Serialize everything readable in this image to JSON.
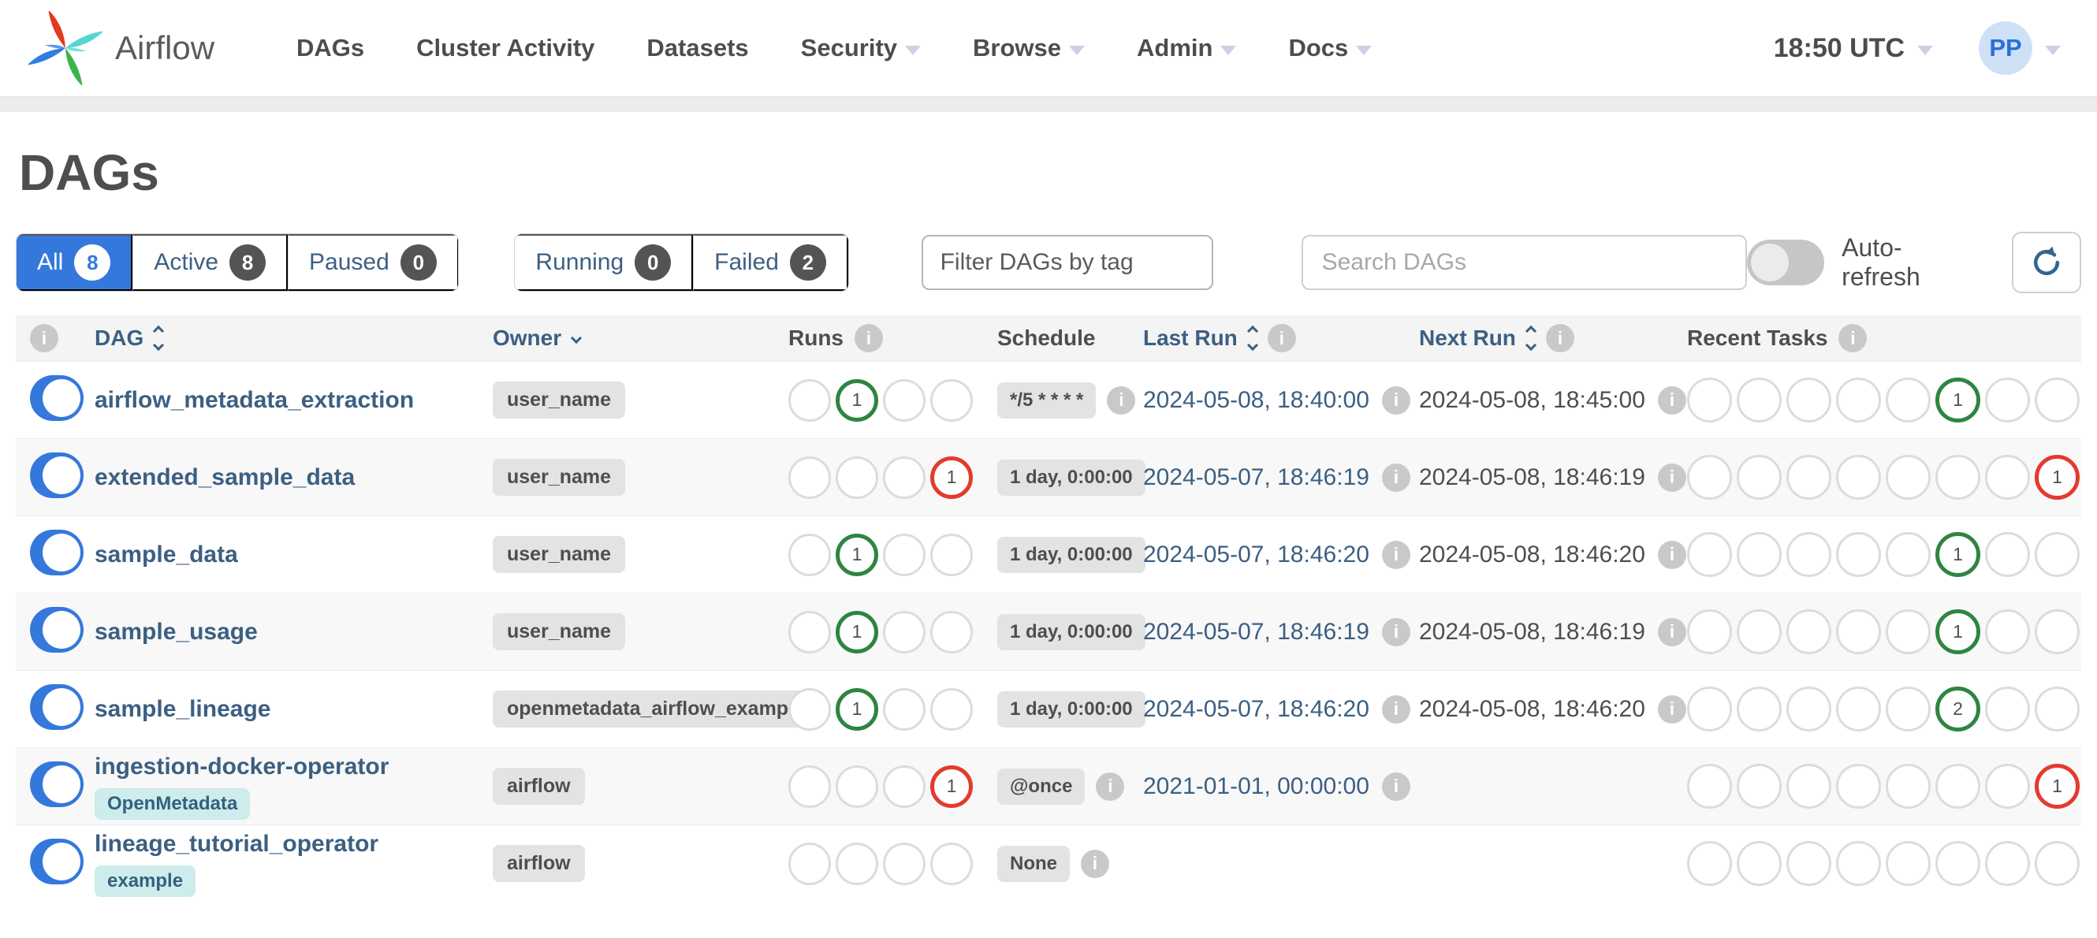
{
  "nav": {
    "brand": "Airflow",
    "items": [
      {
        "label": "DAGs",
        "caret": false
      },
      {
        "label": "Cluster Activity",
        "caret": false
      },
      {
        "label": "Datasets",
        "caret": false
      },
      {
        "label": "Security",
        "caret": true
      },
      {
        "label": "Browse",
        "caret": true
      },
      {
        "label": "Admin",
        "caret": true
      },
      {
        "label": "Docs",
        "caret": true
      }
    ],
    "clock": "18:50 UTC",
    "avatar_initials": "PP"
  },
  "page": {
    "title": "DAGs"
  },
  "filters": {
    "state_buttons": [
      {
        "label": "All",
        "count": "8",
        "active": true
      },
      {
        "label": "Active",
        "count": "8",
        "active": false
      },
      {
        "label": "Paused",
        "count": "0",
        "active": false
      }
    ],
    "run_buttons": [
      {
        "label": "Running",
        "count": "0",
        "active": false
      },
      {
        "label": "Failed",
        "count": "2",
        "active": false
      }
    ],
    "tag_filter_placeholder": "Filter DAGs by tag",
    "search_placeholder": "Search DAGs",
    "auto_refresh_label": "Auto-refresh"
  },
  "icons": {
    "info_glyph": "i"
  },
  "table": {
    "headers": {
      "dag": "DAG",
      "owner": "Owner",
      "runs": "Runs",
      "schedule": "Schedule",
      "last_run": "Last Run",
      "next_run": "Next Run",
      "recent_tasks": "Recent Tasks"
    },
    "rows": [
      {
        "name": "airflow_metadata_extraction",
        "tags": [],
        "owner": "user_name",
        "runs": [
          null,
          {
            "state": "success",
            "count": "1"
          },
          null,
          null
        ],
        "schedule": "*/5 * * * *",
        "schedule_info": true,
        "last_run": "2024-05-08, 18:40:00",
        "next_run": "2024-05-08, 18:45:00",
        "recent": [
          null,
          null,
          null,
          null,
          null,
          {
            "state": "success",
            "count": "1"
          },
          null,
          null,
          null
        ]
      },
      {
        "name": "extended_sample_data",
        "tags": [],
        "owner": "user_name",
        "runs": [
          null,
          null,
          null,
          {
            "state": "failed",
            "count": "1"
          }
        ],
        "schedule": "1 day, 0:00:00",
        "schedule_info": false,
        "last_run": "2024-05-07, 18:46:19",
        "next_run": "2024-05-08, 18:46:19",
        "recent": [
          null,
          null,
          null,
          null,
          null,
          null,
          null,
          {
            "state": "failed",
            "count": "1"
          },
          null
        ]
      },
      {
        "name": "sample_data",
        "tags": [],
        "owner": "user_name",
        "runs": [
          null,
          {
            "state": "success",
            "count": "1"
          },
          null,
          null
        ],
        "schedule": "1 day, 0:00:00",
        "schedule_info": false,
        "last_run": "2024-05-07, 18:46:20",
        "next_run": "2024-05-08, 18:46:20",
        "recent": [
          null,
          null,
          null,
          null,
          null,
          {
            "state": "success",
            "count": "1"
          },
          null,
          null,
          null
        ]
      },
      {
        "name": "sample_usage",
        "tags": [],
        "owner": "user_name",
        "runs": [
          null,
          {
            "state": "success",
            "count": "1"
          },
          null,
          null
        ],
        "schedule": "1 day, 0:00:00",
        "schedule_info": false,
        "last_run": "2024-05-07, 18:46:19",
        "next_run": "2024-05-08, 18:46:19",
        "recent": [
          null,
          null,
          null,
          null,
          null,
          {
            "state": "success",
            "count": "1"
          },
          null,
          null,
          null
        ]
      },
      {
        "name": "sample_lineage",
        "tags": [],
        "owner": "openmetadata_airflow_example",
        "runs": [
          null,
          {
            "state": "success",
            "count": "1"
          },
          null,
          null
        ],
        "schedule": "1 day, 0:00:00",
        "schedule_info": false,
        "last_run": "2024-05-07, 18:46:20",
        "next_run": "2024-05-08, 18:46:20",
        "recent": [
          null,
          null,
          null,
          null,
          null,
          {
            "state": "success",
            "count": "2"
          },
          null,
          null,
          null
        ]
      },
      {
        "name": "ingestion-docker-operator",
        "tags": [
          "OpenMetadata"
        ],
        "owner": "airflow",
        "runs": [
          null,
          null,
          null,
          {
            "state": "failed",
            "count": "1"
          }
        ],
        "schedule": "@once",
        "schedule_info": true,
        "last_run": "2021-01-01, 00:00:00",
        "next_run": "",
        "recent": [
          null,
          null,
          null,
          null,
          null,
          null,
          null,
          {
            "state": "failed",
            "count": "1"
          },
          null
        ]
      },
      {
        "name": "lineage_tutorial_operator",
        "tags": [
          "example"
        ],
        "owner": "airflow",
        "runs": [
          null,
          null,
          null,
          null
        ],
        "schedule": "None",
        "schedule_info": true,
        "last_run": "",
        "next_run": "",
        "recent": [
          null,
          null,
          null,
          null,
          null,
          null,
          null,
          null,
          null
        ]
      }
    ]
  },
  "colors": {
    "accent_blue": "#3578dc",
    "link_blue": "#3c5f82",
    "success_green": "#2e8540",
    "failed_red": "#e43a2e",
    "tag_bg": "#cdeceb",
    "badge_bg": "#e3e3e3"
  }
}
